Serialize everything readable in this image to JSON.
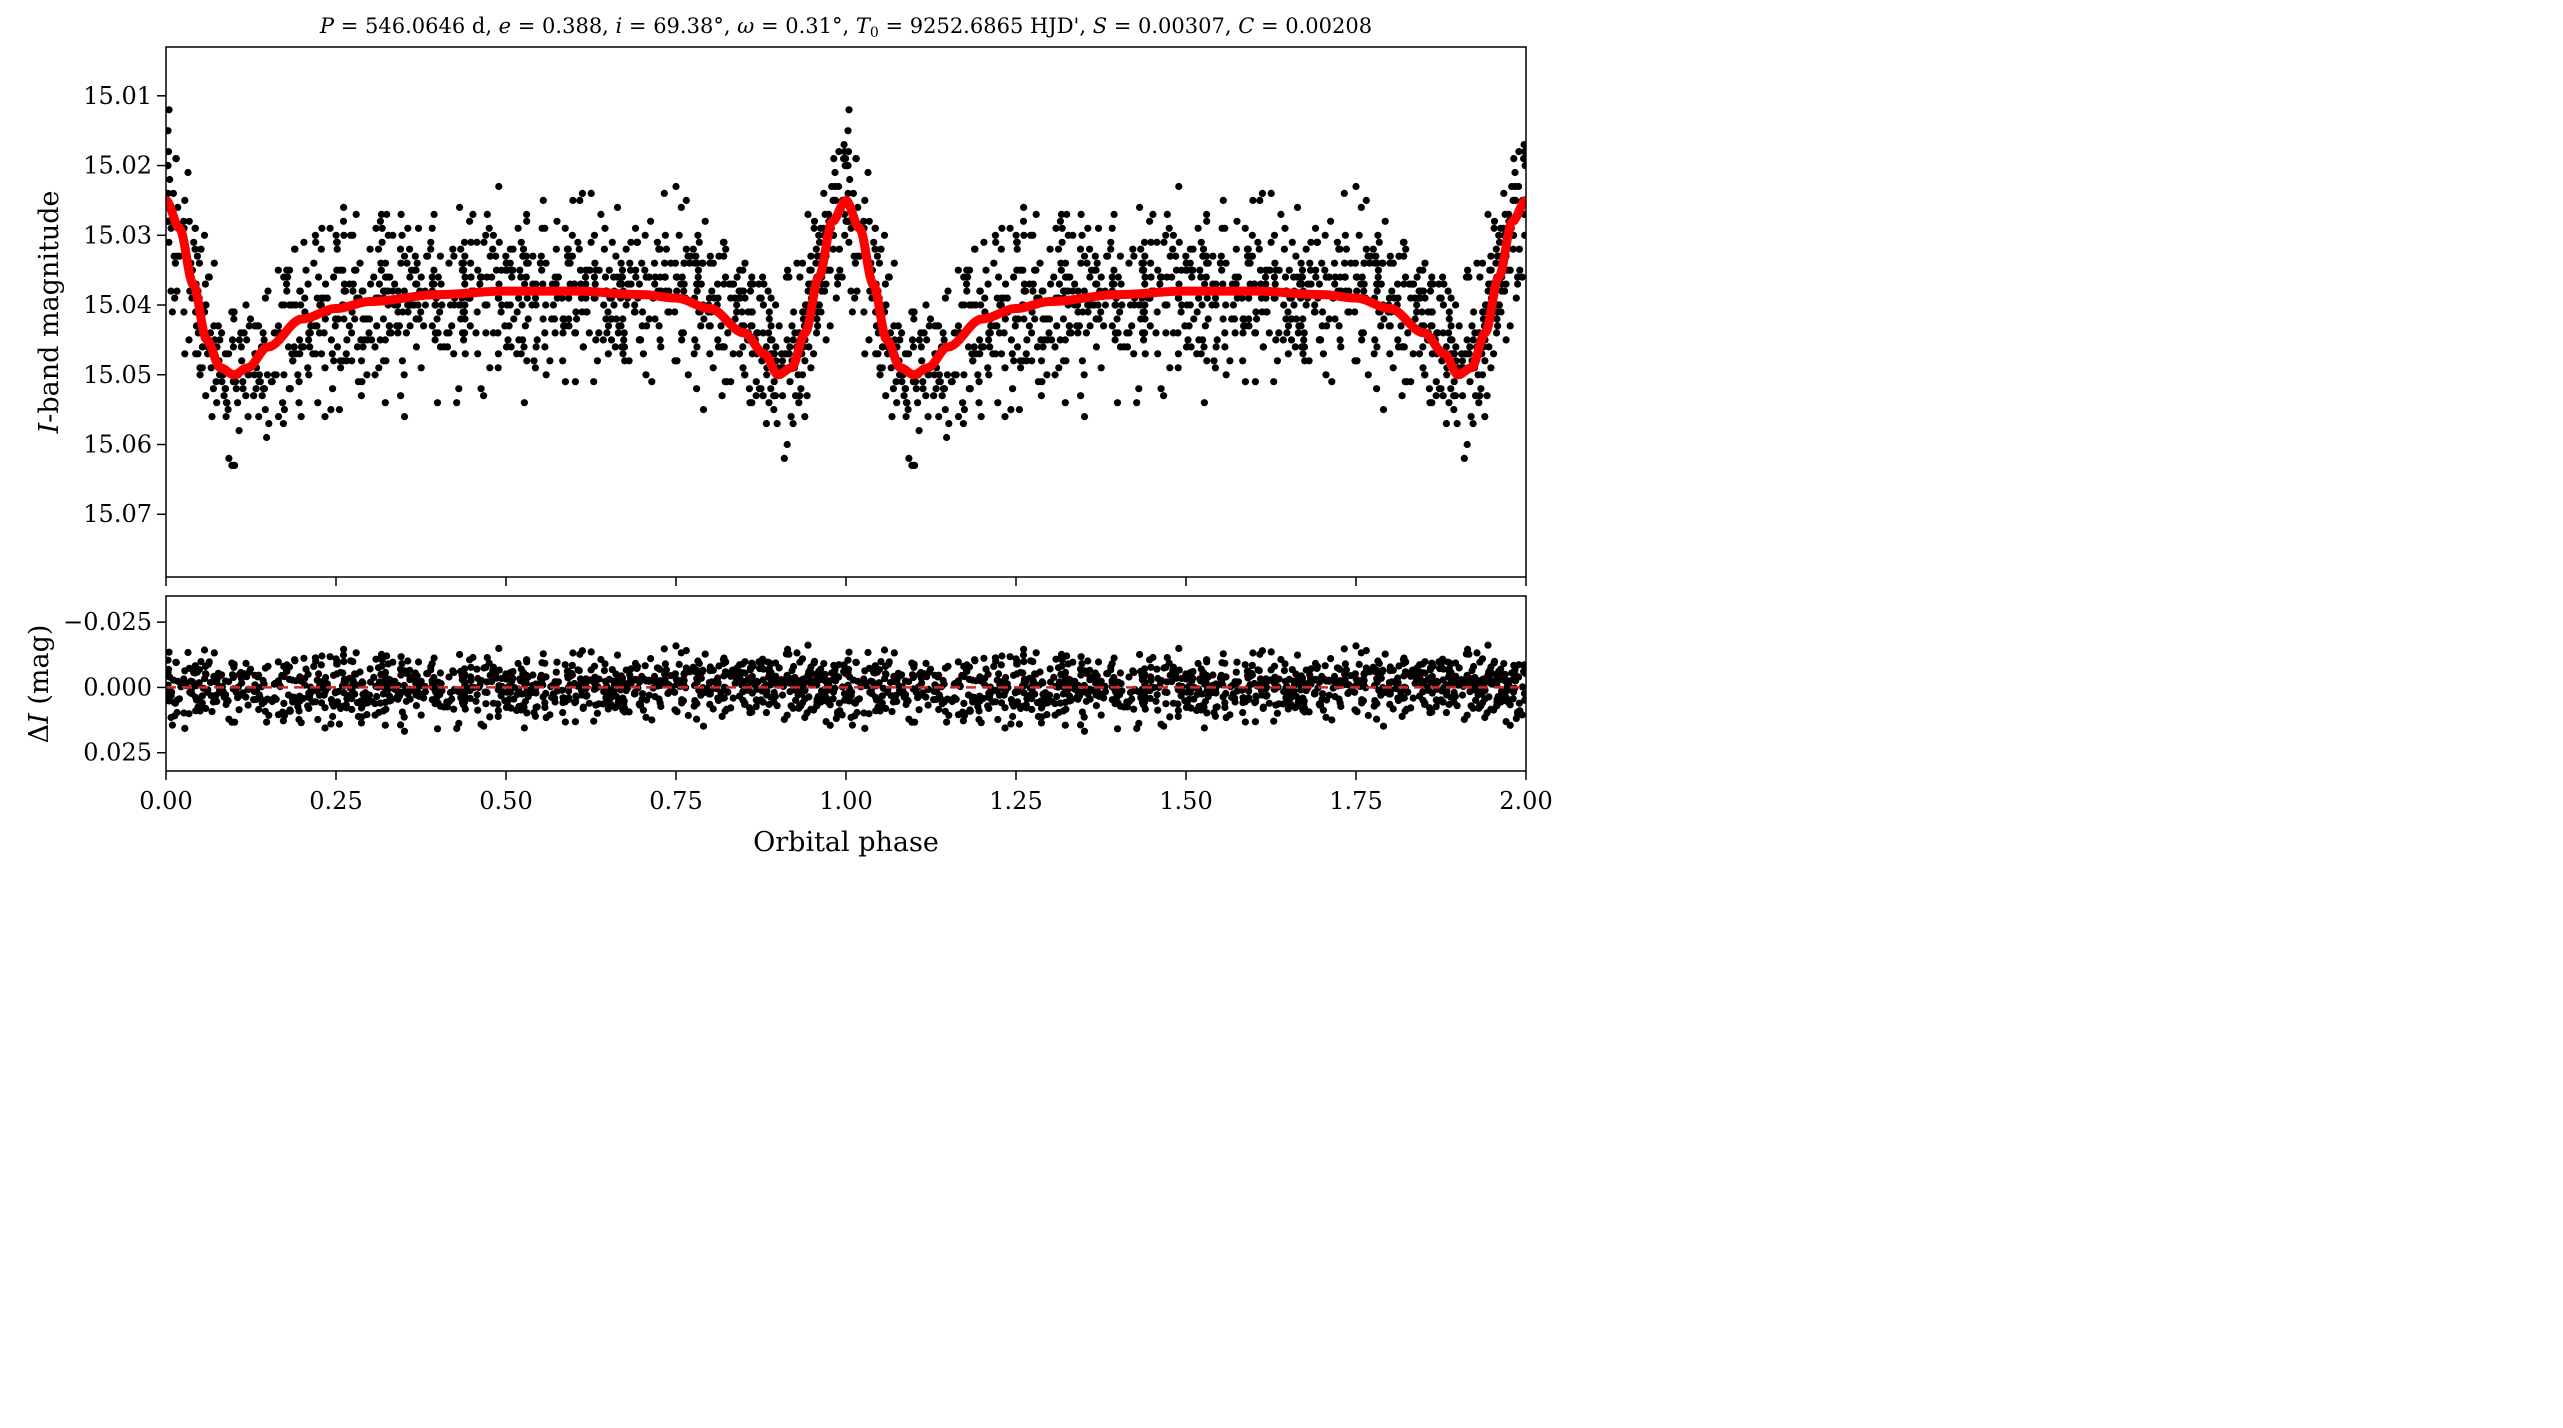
{
  "chart_data": [
    {
      "type": "scatter",
      "title": "P = 546.0646 d, e = 0.388, i = 69.38°, ω = 0.31°, T0 = 9252.6865 HJD', S = 0.00307, C = 0.00208",
      "title_parts": {
        "P_sym": "P",
        "P_val": " = 546.0646 d, ",
        "e_sym": "e",
        "e_val": " = 0.388, ",
        "i_sym": "i",
        "i_val": " = 69.38°, ",
        "w_sym": "ω",
        "w_val": " = 0.31°, ",
        "T_sym": "T",
        "T_sub": "0",
        "T_val": " = 9252.6865 HJD', ",
        "S_sym": "S",
        "S_val": " = 0.00307, ",
        "C_sym": "C",
        "C_val": " = 0.00208"
      },
      "xlabel": "",
      "ylabel": "I-band magnitude",
      "ylabel_parts": {
        "sym": "I",
        "rest": "-band magnitude"
      },
      "xlim": [
        0.0,
        2.0
      ],
      "ylim": [
        15.079,
        15.003
      ],
      "y_inverted": true,
      "yticks": [
        "15.01",
        "15.02",
        "15.03",
        "15.04",
        "15.05",
        "15.06",
        "15.07"
      ],
      "ytick_values": [
        15.01,
        15.02,
        15.03,
        15.04,
        15.05,
        15.06,
        15.07
      ],
      "xtick_values": [
        0.0,
        0.25,
        0.5,
        0.75,
        1.0,
        1.25,
        1.5,
        1.75,
        2.0
      ],
      "grid": false,
      "series": [
        {
          "kind": "points",
          "color": "#000000",
          "description_points": [
            {
              "x": 0.0,
              "y": 15.025
            },
            {
              "x": 0.03,
              "y": 15.03
            },
            {
              "x": 0.06,
              "y": 15.045
            },
            {
              "x": 0.1,
              "y": 15.05
            },
            {
              "x": 0.2,
              "y": 15.043
            },
            {
              "x": 0.3,
              "y": 15.039
            },
            {
              "x": 0.5,
              "y": 15.038
            },
            {
              "x": 0.7,
              "y": 15.039
            },
            {
              "x": 0.8,
              "y": 15.043
            },
            {
              "x": 0.9,
              "y": 15.05
            },
            {
              "x": 0.95,
              "y": 15.04
            },
            {
              "x": 1.0,
              "y": 15.023
            }
          ]
        },
        {
          "kind": "model",
          "color": "#ff0000",
          "x": [
            0.0,
            0.02,
            0.04,
            0.06,
            0.08,
            0.1,
            0.12,
            0.15,
            0.2,
            0.25,
            0.3,
            0.4,
            0.5,
            0.6,
            0.7,
            0.75,
            0.8,
            0.85,
            0.88,
            0.9,
            0.92,
            0.94,
            0.96,
            0.98,
            1.0,
            1.02,
            1.04,
            1.06,
            1.08,
            1.1,
            1.12,
            1.15,
            1.2,
            1.25,
            1.3,
            1.4,
            1.5,
            1.6,
            1.7,
            1.75,
            1.8,
            1.85,
            1.88,
            1.9,
            1.92,
            1.94,
            1.96,
            1.98,
            2.0
          ],
          "y": [
            15.025,
            15.029,
            15.037,
            15.045,
            15.049,
            15.05,
            15.049,
            15.046,
            15.042,
            15.0405,
            15.0395,
            15.0385,
            15.038,
            15.038,
            15.0385,
            15.039,
            15.0405,
            15.044,
            15.047,
            15.05,
            15.049,
            15.044,
            15.036,
            15.028,
            15.025,
            15.029,
            15.037,
            15.045,
            15.049,
            15.05,
            15.049,
            15.046,
            15.042,
            15.0405,
            15.0395,
            15.0385,
            15.038,
            15.038,
            15.0385,
            15.039,
            15.0405,
            15.044,
            15.047,
            15.05,
            15.049,
            15.044,
            15.036,
            15.028,
            15.025
          ]
        }
      ]
    },
    {
      "type": "scatter",
      "xlabel": "Orbital phase",
      "ylabel": "ΔI (mag)",
      "ylabel_parts": {
        "delta": "Δ",
        "sym": "I",
        "rest": " (mag)"
      },
      "xlim": [
        0.0,
        2.0
      ],
      "ylim": [
        0.032,
        -0.035
      ],
      "y_inverted": true,
      "yticks": [
        "−0.025",
        "0.000",
        "0.025"
      ],
      "ytick_values": [
        -0.025,
        0.0,
        0.025
      ],
      "xticks": [
        "0.00",
        "0.25",
        "0.50",
        "0.75",
        "1.00",
        "1.25",
        "1.50",
        "1.75",
        "2.00"
      ],
      "xtick_values": [
        0.0,
        0.25,
        0.5,
        0.75,
        1.0,
        1.25,
        1.5,
        1.75,
        2.0
      ],
      "grid": false,
      "series": [
        {
          "kind": "points",
          "color": "#000000",
          "spread": 0.015,
          "extremes": [
            -0.02,
            0.022
          ]
        },
        {
          "kind": "zero-line",
          "color": "#d62728",
          "style": "dashed",
          "y": 0.0
        }
      ]
    }
  ]
}
